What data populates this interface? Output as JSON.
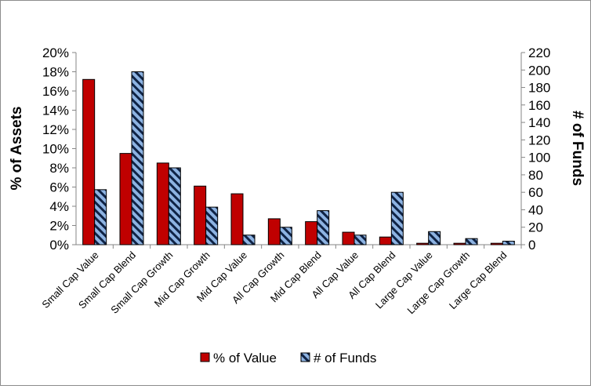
{
  "chart_data": {
    "type": "bar",
    "categories": [
      "Small Cap Value",
      "Small Cap Blend",
      "Small Cap Growth",
      "Mid Cap Growth",
      "Mid Cap Value",
      "All Cap Growth",
      "Mid Cap Blend",
      "All Cap Value",
      "All Cap Blend",
      "Large Cap Value",
      "Large  Cap Growth",
      "Large Cap Blend"
    ],
    "series": [
      {
        "name": "% of Value",
        "axis": "left",
        "color": "#c00000",
        "values": [
          17.2,
          9.5,
          8.5,
          6.1,
          5.3,
          2.7,
          2.4,
          1.3,
          0.8,
          0.15,
          0.15,
          0.15
        ]
      },
      {
        "name": "# of Funds",
        "axis": "right",
        "color": "#8db3e2",
        "values": [
          63,
          198,
          88,
          43,
          11,
          20,
          39,
          11,
          60,
          15,
          7,
          4
        ]
      }
    ],
    "ylabel": "% of Assets",
    "y2label": "# of Funds",
    "ylim": [
      0,
      20
    ],
    "y2lim": [
      0,
      220
    ],
    "yticks": [
      "0%",
      "2%",
      "4%",
      "6%",
      "8%",
      "10%",
      "12%",
      "14%",
      "16%",
      "18%",
      "20%"
    ],
    "y2ticks": [
      "0",
      "20",
      "40",
      "60",
      "80",
      "100",
      "120",
      "140",
      "160",
      "180",
      "200",
      "220"
    ],
    "grid": false,
    "legend_position": "bottom"
  }
}
